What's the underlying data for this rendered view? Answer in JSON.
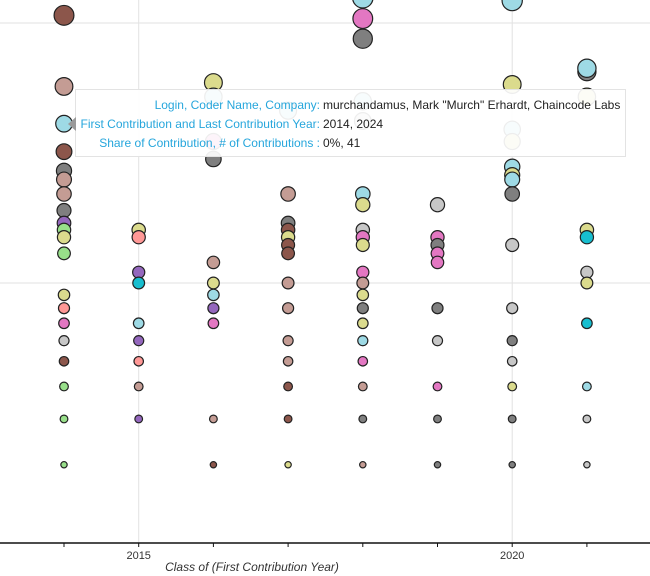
{
  "chart_data": {
    "type": "scatter",
    "title": "",
    "xlabel": "Class of (First Contribution Year)",
    "ylabel": "",
    "x_scale": "linear",
    "y_scale": "log",
    "xlim": [
      2013.15,
      2021.8
    ],
    "ylim": [
      1,
      123
    ],
    "x_ticks": [
      2014,
      2015,
      2016,
      2017,
      2018,
      2019,
      2020,
      2021
    ],
    "x_tick_labels": [
      {
        "value": 2015,
        "label": "2015"
      },
      {
        "value": 2020,
        "label": "2020"
      }
    ],
    "y_gridlines": [
      10,
      100
    ],
    "x_gridlines": [
      2015,
      2020
    ],
    "point_fields": [
      "first_contribution_year",
      "contributions",
      "color"
    ],
    "palette": {
      "brown": "#8c564b",
      "rosy": "#c49c94",
      "lightcyan": "#9edae5",
      "cyan": "#17becf",
      "gray": "#7f7f7f",
      "lightgray": "#c7c7c7",
      "purple": "#9467bd",
      "lightgreen": "#98df8a",
      "olive": "#dbdb8d",
      "salmon": "#ff9896",
      "pink": "#e377c2"
    },
    "points": [
      [
        2014,
        107,
        "brown"
      ],
      [
        2014,
        57,
        "rosy"
      ],
      [
        2014,
        41,
        "lightcyan"
      ],
      [
        2014,
        32,
        "brown"
      ],
      [
        2014,
        27,
        "gray"
      ],
      [
        2014,
        25,
        "rosy"
      ],
      [
        2014,
        22,
        "rosy"
      ],
      [
        2014,
        19,
        "gray"
      ],
      [
        2014,
        17,
        "purple"
      ],
      [
        2014,
        16,
        "lightgreen"
      ],
      [
        2014,
        15,
        "olive"
      ],
      [
        2014,
        13,
        "lightgreen"
      ],
      [
        2014,
        9,
        "olive"
      ],
      [
        2014,
        8,
        "salmon"
      ],
      [
        2014,
        7,
        "pink"
      ],
      [
        2014,
        6,
        "lightgray"
      ],
      [
        2014,
        5,
        "brown"
      ],
      [
        2014,
        4,
        "lightgreen"
      ],
      [
        2014,
        3,
        "lightgreen"
      ],
      [
        2014,
        2,
        "lightgreen"
      ],
      [
        2015,
        16,
        "olive"
      ],
      [
        2015,
        15,
        "salmon"
      ],
      [
        2015,
        11,
        "purple"
      ],
      [
        2015,
        10,
        "cyan"
      ],
      [
        2015,
        7,
        "lightcyan"
      ],
      [
        2015,
        6,
        "purple"
      ],
      [
        2015,
        5,
        "salmon"
      ],
      [
        2015,
        4,
        "rosy"
      ],
      [
        2015,
        3,
        "purple"
      ],
      [
        2016,
        59,
        "olive"
      ],
      [
        2016,
        52,
        "lightcyan"
      ],
      [
        2016,
        35,
        "pink"
      ],
      [
        2016,
        30,
        "gray"
      ],
      [
        2016,
        12,
        "rosy"
      ],
      [
        2016,
        10,
        "olive"
      ],
      [
        2016,
        9,
        "lightcyan"
      ],
      [
        2016,
        8,
        "purple"
      ],
      [
        2016,
        7,
        "pink"
      ],
      [
        2016,
        3,
        "rosy"
      ],
      [
        2016,
        2,
        "brown"
      ],
      [
        2017,
        46,
        "lightcyan"
      ],
      [
        2017,
        22,
        "rosy"
      ],
      [
        2017,
        17,
        "gray"
      ],
      [
        2017,
        16,
        "brown"
      ],
      [
        2017,
        15,
        "olive"
      ],
      [
        2017,
        14,
        "brown"
      ],
      [
        2017,
        13,
        "brown"
      ],
      [
        2017,
        10,
        "rosy"
      ],
      [
        2017,
        8,
        "rosy"
      ],
      [
        2017,
        6,
        "rosy"
      ],
      [
        2017,
        5,
        "rosy"
      ],
      [
        2017,
        4,
        "brown"
      ],
      [
        2017,
        3,
        "brown"
      ],
      [
        2017,
        2,
        "olive"
      ],
      [
        2018,
        125,
        "lightcyan"
      ],
      [
        2018,
        104,
        "pink"
      ],
      [
        2018,
        87,
        "gray"
      ],
      [
        2018,
        50,
        "lightcyan"
      ],
      [
        2018,
        42,
        "lightgray"
      ],
      [
        2018,
        22,
        "lightcyan"
      ],
      [
        2018,
        20,
        "olive"
      ],
      [
        2018,
        16,
        "lightgray"
      ],
      [
        2018,
        15,
        "pink"
      ],
      [
        2018,
        14,
        "olive"
      ],
      [
        2018,
        11,
        "pink"
      ],
      [
        2018,
        10,
        "rosy"
      ],
      [
        2018,
        9,
        "olive"
      ],
      [
        2018,
        8,
        "gray"
      ],
      [
        2018,
        7,
        "olive"
      ],
      [
        2018,
        6,
        "lightcyan"
      ],
      [
        2018,
        5,
        "pink"
      ],
      [
        2018,
        4,
        "rosy"
      ],
      [
        2018,
        3,
        "gray"
      ],
      [
        2018,
        2,
        "rosy"
      ],
      [
        2019,
        20,
        "lightgray"
      ],
      [
        2019,
        15,
        "pink"
      ],
      [
        2019,
        14,
        "gray"
      ],
      [
        2019,
        13,
        "pink"
      ],
      [
        2019,
        12,
        "pink"
      ],
      [
        2019,
        8,
        "gray"
      ],
      [
        2019,
        6,
        "lightgray"
      ],
      [
        2019,
        4,
        "pink"
      ],
      [
        2019,
        3,
        "gray"
      ],
      [
        2019,
        2,
        "gray"
      ],
      [
        2020,
        122,
        "lightcyan"
      ],
      [
        2020,
        58,
        "olive"
      ],
      [
        2020,
        39,
        "lightcyan"
      ],
      [
        2020,
        35,
        "olive"
      ],
      [
        2020,
        28,
        "lightcyan"
      ],
      [
        2020,
        26,
        "olive"
      ],
      [
        2020,
        25,
        "lightcyan"
      ],
      [
        2020,
        22,
        "gray"
      ],
      [
        2020,
        14,
        "lightgray"
      ],
      [
        2020,
        8,
        "lightgray"
      ],
      [
        2020,
        6,
        "gray"
      ],
      [
        2020,
        5,
        "lightgray"
      ],
      [
        2020,
        4,
        "olive"
      ],
      [
        2020,
        3,
        "gray"
      ],
      [
        2020,
        2,
        "gray"
      ],
      [
        2021,
        65,
        "gray"
      ],
      [
        2021,
        67,
        "lightcyan"
      ],
      [
        2021,
        52,
        "olive"
      ],
      [
        2021,
        16,
        "olive"
      ],
      [
        2021,
        15,
        "cyan"
      ],
      [
        2021,
        11,
        "lightgray"
      ],
      [
        2021,
        10,
        "olive"
      ],
      [
        2021,
        7,
        "cyan"
      ],
      [
        2021,
        4,
        "lightcyan"
      ],
      [
        2021,
        3,
        "lightgray"
      ],
      [
        2021,
        2,
        "lightgray"
      ]
    ]
  },
  "tooltip": {
    "rows": [
      {
        "label": "Login, Coder Name, Company:",
        "value": "murchandamus, Mark \"Murch\" Erhardt, Chaincode Labs"
      },
      {
        "label": "First Contribution and Last Contribution Year:",
        "value": "2014, 2024"
      },
      {
        "label": "Share of Contribution, # of Contributions :",
        "value": "0%, 41"
      }
    ]
  }
}
